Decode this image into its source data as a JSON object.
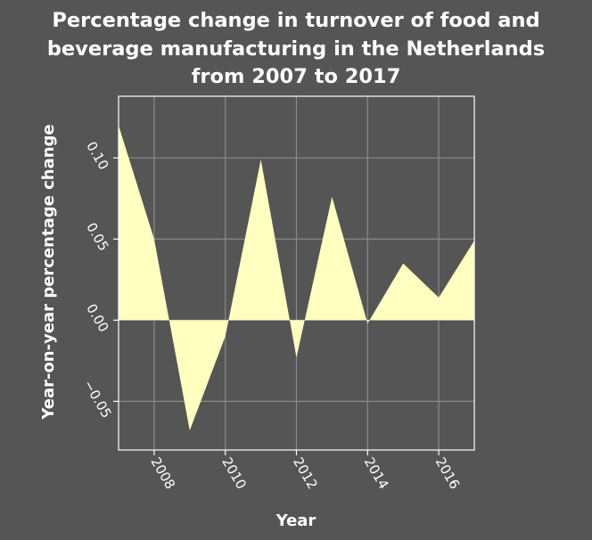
{
  "chart_data": {
    "type": "area",
    "title": [
      "Percentage change in turnover of food and",
      "beverage manufacturing in the Netherlands",
      "from 2007 to 2017"
    ],
    "xlabel": "Year",
    "ylabel": "Year-on-year percentage change",
    "x": [
      2007,
      2008,
      2009,
      2010,
      2011,
      2012,
      2013,
      2014,
      2015,
      2016,
      2017
    ],
    "values": [
      0.12,
      0.05,
      -0.068,
      -0.01,
      0.099,
      -0.023,
      0.076,
      -0.002,
      0.035,
      0.014,
      0.049
    ],
    "xlim": [
      2007,
      2017
    ],
    "ylim": [
      -0.08,
      0.138
    ],
    "xticks": [
      2008,
      2010,
      2012,
      2014,
      2016
    ],
    "xtick_labels": [
      "2008",
      "2010",
      "2012",
      "2014",
      "2016"
    ],
    "yticks": [
      -0.05,
      0.0,
      0.05,
      0.1
    ],
    "ytick_labels": [
      "−0.05",
      "0.00",
      "0.05",
      "0.10"
    ],
    "grid": true,
    "colors": {
      "fill": "#ffffc0",
      "background": "#555555",
      "grid": "#8a8a8a",
      "text": "#ffffff"
    }
  }
}
